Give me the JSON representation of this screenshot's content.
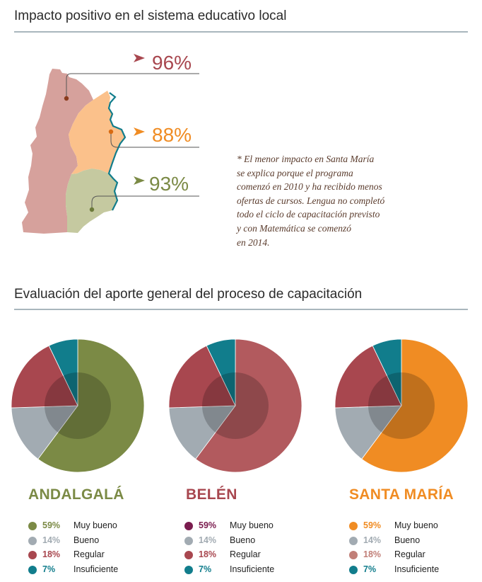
{
  "section1": {
    "title": "Impacto positivo en el sistema educativo local",
    "regions": [
      {
        "percent": "96%",
        "color": "#a8474f",
        "fill": "#d6a19c"
      },
      {
        "percent": "88%",
        "color": "#f08c23",
        "fill": "#fbc18b"
      },
      {
        "percent": "93%",
        "color": "#7b8a45",
        "fill": "#c5c9a0"
      }
    ],
    "note_lines": [
      "* El menor impacto en Santa María",
      "se explica porque el programa",
      "comenzó en 2010 y ha recibido menos",
      "ofertas de cursos. Lengua no completó",
      "todo el ciclo de capacitación previsto",
      "y con Matemática se comenzó",
      "en 2014."
    ]
  },
  "section2": {
    "title": "Evaluación del aporte general del proceso de capacitación"
  },
  "colors": {
    "rule": "#a9b6bd",
    "bueno": "#a2abb2",
    "regular": "#a8474f",
    "insuficiente": "#117d8c",
    "border": "#117d8c"
  },
  "chart_data": [
    {
      "type": "pie",
      "title": "ANDALGALÁ",
      "title_color": "#7b8a45",
      "categories": [
        "Muy bueno",
        "Bueno",
        "Regular",
        "Insuficiente"
      ],
      "values": [
        59,
        14,
        18,
        7
      ],
      "percent_labels": [
        "59%",
        "14%",
        "18%",
        "7%"
      ],
      "colors": [
        "#7b8a45",
        "#a2abb2",
        "#a8474f",
        "#117d8c"
      ]
    },
    {
      "type": "pie",
      "title": "BELÉN",
      "title_color": "#a8474f",
      "categories": [
        "Muy bueno",
        "Bueno",
        "Regular",
        "Insuficiente"
      ],
      "values": [
        59,
        14,
        18,
        7
      ],
      "percent_labels": [
        "59%",
        "14%",
        "18%",
        "7%"
      ],
      "colors": [
        "#b25a5e",
        "#a2abb2",
        "#a8474f",
        "#117d8c"
      ],
      "legend_colors": [
        "#7a1c4e",
        "#a2abb2",
        "#a8474f",
        "#117d8c"
      ]
    },
    {
      "type": "pie",
      "title": "SANTA MARÍA",
      "title_color": "#f08c23",
      "categories": [
        "Muy bueno",
        "Bueno",
        "Regular",
        "Insuficiente"
      ],
      "values": [
        59,
        14,
        18,
        7
      ],
      "percent_labels": [
        "59%",
        "14%",
        "18%",
        "7%"
      ],
      "colors": [
        "#f08c23",
        "#a2abb2",
        "#a8474f",
        "#117d8c"
      ],
      "legend_colors": [
        "#f08c23",
        "#a2abb2",
        "#c17f78",
        "#117d8c"
      ]
    }
  ]
}
